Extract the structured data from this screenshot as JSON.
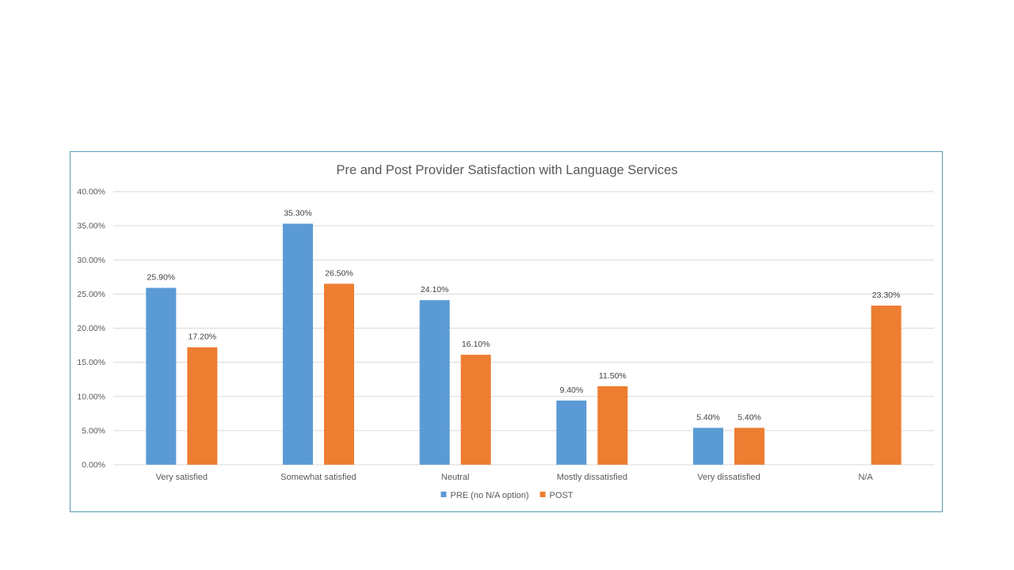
{
  "chart_data": {
    "type": "bar",
    "title": "Pre and Post Provider Satisfaction with Language Services",
    "xlabel": "",
    "ylabel": "",
    "categories": [
      "Very satisfied",
      "Somewhat satisfied",
      "Neutral",
      "Mostly dissatisfied",
      "Very dissatisfied",
      "N/A"
    ],
    "series": [
      {
        "name": "PRE (no N/A option)",
        "color": "#5b9bd5",
        "values": [
          25.9,
          35.3,
          24.1,
          9.4,
          5.4,
          null
        ],
        "labels": [
          "25.90%",
          "35.30%",
          "24.10%",
          "9.40%",
          "5.40%",
          ""
        ]
      },
      {
        "name": "POST",
        "color": "#ed7d31",
        "values": [
          17.2,
          26.5,
          16.1,
          11.5,
          5.4,
          23.3
        ],
        "labels": [
          "17.20%",
          "26.50%",
          "16.10%",
          "11.50%",
          "5.40%",
          "23.30%"
        ]
      }
    ],
    "ylim": [
      0,
      40
    ],
    "yticks": [
      0,
      5,
      10,
      15,
      20,
      25,
      30,
      35,
      40
    ],
    "ytick_labels": [
      "0.00%",
      "5.00%",
      "10.00%",
      "15.00%",
      "20.00%",
      "25.00%",
      "30.00%",
      "35.00%",
      "40.00%"
    ],
    "grid": true,
    "legend_position": "bottom"
  }
}
